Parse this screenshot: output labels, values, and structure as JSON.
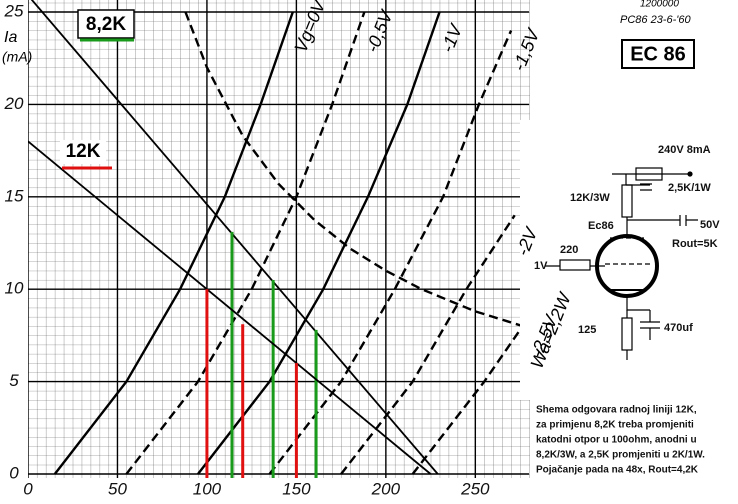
{
  "chart_data": {
    "type": "line",
    "title": "EC 86",
    "stamp": "PC86 23-6-'60",
    "code": "1200000",
    "y_label": "Ia",
    "y_unit": "(mA)",
    "xlim": [
      0,
      280
    ],
    "ylim": [
      0,
      25
    ],
    "xticks": [
      0,
      50,
      100,
      150,
      200,
      250
    ],
    "yticks": [
      0,
      5,
      10,
      15,
      20,
      25
    ],
    "grid": true,
    "series": [
      {
        "name": "Wa=2,2W",
        "dash": true,
        "x": [
          88,
          100,
          120,
          140,
          160,
          180,
          200,
          220,
          250,
          280
        ],
        "values": [
          25,
          22,
          18.3,
          15.7,
          13.75,
          12.2,
          11,
          10,
          8.8,
          7.9
        ]
      },
      {
        "name": "Vg=0V",
        "dash": false,
        "x": [
          15,
          55,
          85,
          110,
          130,
          148
        ],
        "values": [
          0,
          5,
          10,
          15,
          20,
          25
        ]
      },
      {
        "name": "-0,5V",
        "dash": true,
        "x": [
          55,
          95,
          125,
          150,
          170,
          188
        ],
        "values": [
          0,
          5,
          10,
          15,
          20,
          25
        ]
      },
      {
        "name": "-1V",
        "dash": false,
        "x": [
          95,
          135,
          165,
          190,
          212,
          230
        ],
        "values": [
          0,
          5,
          10,
          15,
          20,
          25
        ]
      },
      {
        "name": "-1,5V",
        "dash": true,
        "x": [
          135,
          175,
          205,
          232,
          252,
          270
        ],
        "values": [
          0,
          5,
          10,
          15,
          20,
          24
        ]
      },
      {
        "name": "-2V",
        "dash": true,
        "x": [
          175,
          215,
          245,
          272
        ],
        "values": [
          0,
          5,
          10,
          14
        ]
      },
      {
        "name": "-2,5V",
        "dash": true,
        "x": [
          215,
          255,
          280
        ],
        "values": [
          0,
          5,
          8.5
        ]
      }
    ],
    "load_lines": [
      {
        "name": "8,2K",
        "color": "#1a9a1a",
        "x": [
          0,
          229
        ],
        "values": [
          25.9,
          0
        ],
        "points_x": [
          114,
          137,
          161
        ],
        "points_values": [
          13.1,
          10.5,
          7.8
        ]
      },
      {
        "name": "12K",
        "color": "#e01010",
        "x": [
          0,
          225
        ],
        "values": [
          18,
          0
        ],
        "points_x": [
          100,
          120,
          150
        ],
        "points_values": [
          10,
          8.1,
          6
        ]
      }
    ]
  },
  "schematic": {
    "labels": [
      "240V 8mA",
      "12K/3W",
      "2,5K/1W",
      "Ec86",
      "50V",
      "Rout=5K",
      "1V",
      "220",
      "125",
      "470uf"
    ]
  },
  "note": {
    "lines": [
      "Shema odgovara radnoj liniji 12K,",
      "za primjenu 8,2K treba promjeniti",
      "katodni otpor u 100ohm, anodni u",
      "8,2K/3W, a 2,5K promjeniti u 2K/1W.",
      "Pojačanje pada na 48x, Rout=4,2K"
    ]
  }
}
